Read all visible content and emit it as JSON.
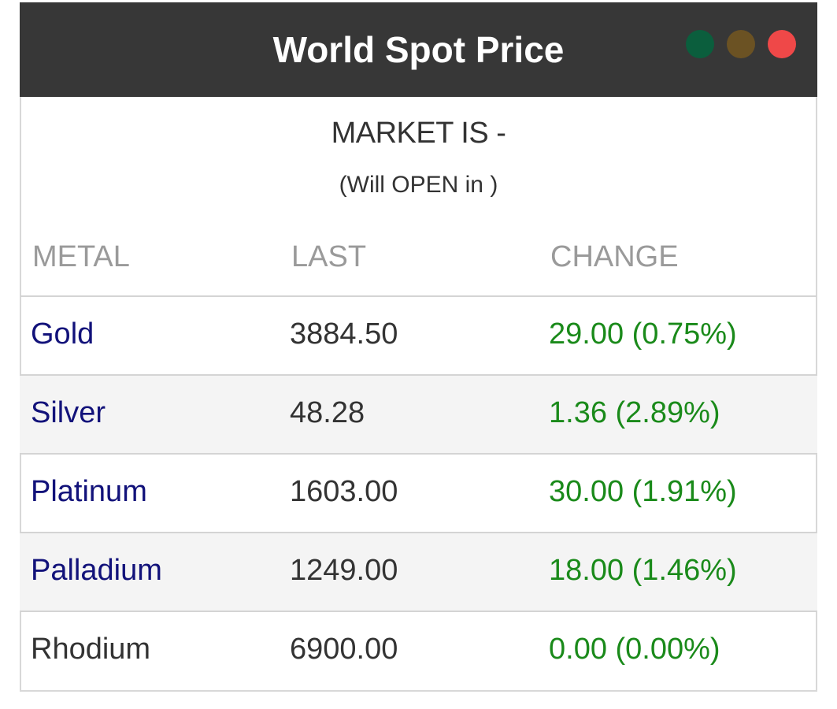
{
  "header": {
    "title": "World Spot Price",
    "window_dots": [
      "green-dot",
      "brown-dot",
      "red-dot"
    ],
    "dot_colors": [
      "#0b5e3d",
      "#6b5223",
      "#ef4848"
    ]
  },
  "market": {
    "status": "MARKET IS -",
    "countdown": "(Will OPEN in )"
  },
  "table": {
    "columns": [
      "METAL",
      "LAST",
      "CHANGE"
    ],
    "rows": [
      {
        "metal": "Gold",
        "last": "3884.50",
        "change": "29.00 (0.75%)"
      },
      {
        "metal": "Silver",
        "last": "48.28",
        "change": "1.36 (2.89%)"
      },
      {
        "metal": "Platinum",
        "last": "1603.00",
        "change": "30.00 (1.91%)"
      },
      {
        "metal": "Palladium",
        "last": "1249.00",
        "change": "18.00 (1.46%)"
      },
      {
        "metal": "Rhodium",
        "last": "6900.00",
        "change": "0.00 (0.00%)"
      }
    ]
  },
  "colors": {
    "header_bg": "#373737",
    "metal_link": "#12127a",
    "positive_change": "#1a8a1a",
    "column_header": "#9a9a9a"
  }
}
